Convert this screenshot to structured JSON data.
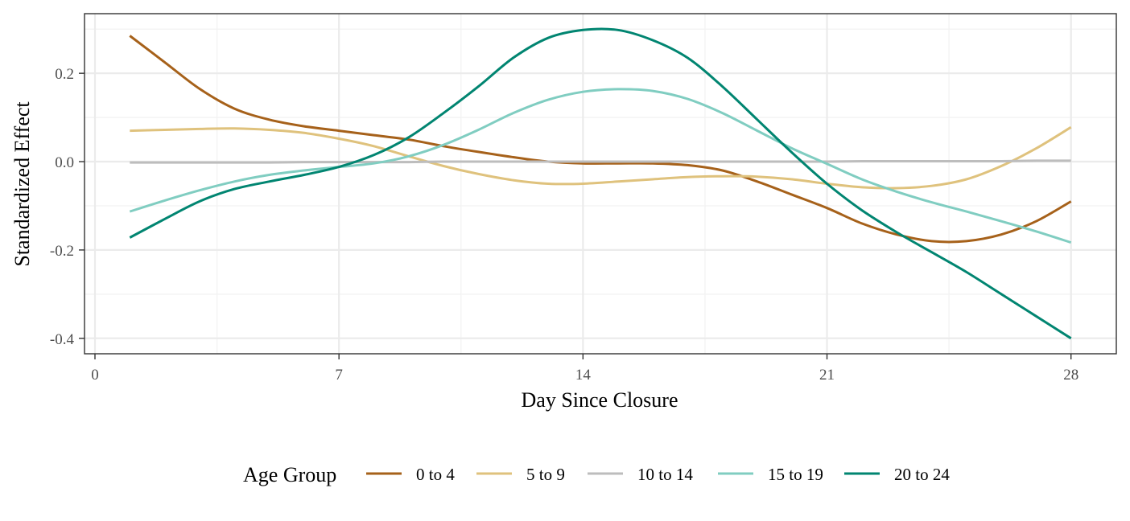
{
  "chart_data": {
    "type": "line",
    "title": "",
    "xlabel": "Day Since Closure",
    "ylabel": "Standardized Effect",
    "xlim": [
      -0.3,
      29.3
    ],
    "ylim": [
      -0.435,
      0.335
    ],
    "x_ticks": [
      0,
      7,
      14,
      21,
      28
    ],
    "x_tick_labels": [
      "0",
      "7",
      "14",
      "21",
      "28"
    ],
    "y_ticks": [
      -0.4,
      -0.2,
      0.0,
      0.2
    ],
    "y_tick_labels": [
      "-0.4",
      "-0.2",
      "0.0",
      "0.2"
    ],
    "x_minor_ticks": [
      3.5,
      10.5,
      17.5,
      24.5
    ],
    "y_minor_ticks": [
      -0.3,
      -0.1,
      0.1,
      0.3
    ],
    "grid": true,
    "legend": {
      "title": "Age Group",
      "position": "bottom"
    },
    "x": [
      1,
      2,
      3,
      4,
      5,
      6,
      7,
      8,
      9,
      10,
      11,
      12,
      13,
      14,
      15,
      16,
      17,
      18,
      19,
      20,
      21,
      22,
      23,
      24,
      25,
      26,
      27,
      28
    ],
    "series": [
      {
        "name": "0 to 4",
        "color": "#A6611A",
        "values": [
          0.285,
          0.225,
          0.165,
          0.12,
          0.095,
          0.08,
          0.07,
          0.06,
          0.05,
          0.035,
          0.022,
          0.01,
          0.0,
          -0.004,
          -0.004,
          -0.004,
          -0.008,
          -0.02,
          -0.045,
          -0.075,
          -0.105,
          -0.14,
          -0.165,
          -0.18,
          -0.18,
          -0.165,
          -0.135,
          -0.09
        ]
      },
      {
        "name": "5 to 9",
        "color": "#DFC27D",
        "values": [
          0.07,
          0.072,
          0.074,
          0.075,
          0.072,
          0.065,
          0.052,
          0.035,
          0.012,
          -0.01,
          -0.028,
          -0.042,
          -0.05,
          -0.05,
          -0.045,
          -0.04,
          -0.035,
          -0.033,
          -0.034,
          -0.04,
          -0.05,
          -0.058,
          -0.06,
          -0.055,
          -0.04,
          -0.01,
          0.03,
          0.078
        ]
      },
      {
        "name": "10 to 14",
        "color": "#BDBDBD",
        "values": [
          -0.002,
          -0.002,
          -0.002,
          -0.002,
          -0.002,
          -0.001,
          -0.001,
          -0.001,
          -0.001,
          0.0,
          0.0,
          0.0,
          0.0,
          0.0,
          0.0,
          0.0,
          0.0,
          0.0,
          0.0,
          0.0,
          0.0,
          0.001,
          0.001,
          0.001,
          0.001,
          0.001,
          0.002,
          0.002
        ]
      },
      {
        "name": "15 to 19",
        "color": "#80CDC1",
        "values": [
          -0.113,
          -0.088,
          -0.065,
          -0.045,
          -0.03,
          -0.02,
          -0.012,
          -0.004,
          0.012,
          0.038,
          0.072,
          0.11,
          0.14,
          0.158,
          0.164,
          0.16,
          0.142,
          0.11,
          0.07,
          0.03,
          -0.005,
          -0.04,
          -0.068,
          -0.092,
          -0.113,
          -0.135,
          -0.158,
          -0.183
        ]
      },
      {
        "name": "20 to 24",
        "color": "#018571",
        "values": [
          -0.172,
          -0.13,
          -0.09,
          -0.062,
          -0.045,
          -0.03,
          -0.012,
          0.015,
          0.055,
          0.11,
          0.17,
          0.235,
          0.28,
          0.298,
          0.298,
          0.275,
          0.235,
          0.17,
          0.095,
          0.02,
          -0.05,
          -0.11,
          -0.16,
          -0.205,
          -0.25,
          -0.3,
          -0.35,
          -0.4
        ]
      }
    ]
  }
}
